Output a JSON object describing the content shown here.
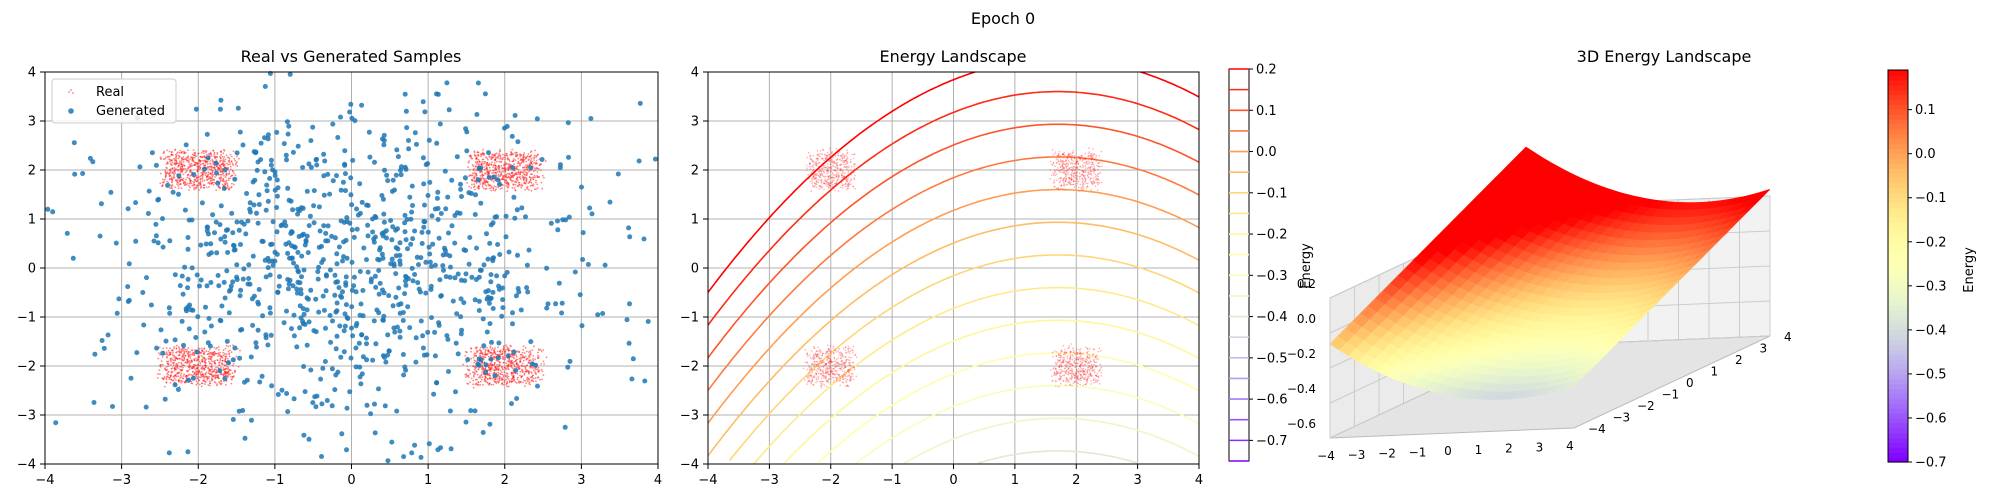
{
  "figure": {
    "title": "Epoch 0"
  },
  "colors": {
    "real": "#ff2020",
    "generated": "#1f77b4",
    "grid": "#b0b0b0",
    "colormap": [
      "#7f00ff",
      "#2b5ff6",
      "#28c5e9",
      "#80feb3",
      "#d4dd80",
      "#ff9a4f",
      "#ff0000"
    ]
  },
  "chart_data": [
    {
      "type": "scatter",
      "title": "Real vs Generated Samples",
      "xlim": [
        -4,
        4
      ],
      "ylim": [
        -4,
        4
      ],
      "xticks": [
        -4,
        -3,
        -2,
        -1,
        0,
        1,
        2,
        3,
        4
      ],
      "yticks": [
        -4,
        -3,
        -2,
        -1,
        0,
        1,
        2,
        3,
        4
      ],
      "grid": true,
      "legend": {
        "position": "top-left",
        "entries": [
          "Real",
          "Generated"
        ]
      },
      "series": [
        {
          "name": "Real",
          "cluster_centers": [
            [
              -2,
              2
            ],
            [
              2,
              2
            ],
            [
              -2,
              -2
            ],
            [
              2,
              -2
            ]
          ],
          "cluster_halfwidth": [
            0.55,
            0.45
          ],
          "points_per_cluster": 700
        },
        {
          "name": "Generated",
          "center": [
            0,
            0
          ],
          "spread": 1.6,
          "points": 1000
        }
      ]
    },
    {
      "type": "contour",
      "title": "Energy Landscape",
      "xlim": [
        -4,
        4
      ],
      "ylim": [
        -4,
        4
      ],
      "xticks": [
        -4,
        -3,
        -2,
        -1,
        0,
        1,
        2,
        3,
        4
      ],
      "yticks": [
        -4,
        -3,
        -2,
        -1,
        0,
        1,
        2,
        3,
        4
      ],
      "grid": true,
      "levels": [
        -0.75,
        -0.7,
        -0.65,
        -0.6,
        -0.55,
        -0.5,
        -0.45,
        -0.4,
        -0.35,
        -0.3,
        -0.25,
        -0.2,
        -0.15,
        -0.1,
        -0.05,
        0.0,
        0.05,
        0.1,
        0.15,
        0.2
      ],
      "overlay_clusters": [
        [
          -2,
          2
        ],
        [
          2,
          2
        ],
        [
          -2,
          -2
        ],
        [
          2,
          -2
        ]
      ],
      "colorbar": {
        "label": "Energy",
        "ticks": [
          "0.2",
          "0.1",
          "0.0",
          "−0.1",
          "−0.2",
          "−0.3",
          "−0.4",
          "−0.5",
          "−0.6",
          "−0.7"
        ],
        "range": [
          -0.75,
          0.2
        ]
      }
    },
    {
      "type": "surface3d",
      "title": "3D Energy Landscape",
      "xlim": [
        -4,
        4
      ],
      "ylim": [
        -4,
        4
      ],
      "zlim": [
        -0.6,
        0.2
      ],
      "xticks": [
        "−4",
        "−3",
        "−2",
        "−1",
        "0",
        "1",
        "2",
        "3",
        "4"
      ],
      "yticks": [
        "−4",
        "−3",
        "−2",
        "−1",
        "0",
        "1",
        "2",
        "3",
        "4"
      ],
      "zticks": [
        "0.2",
        "0.0",
        "−0.2",
        "−0.4",
        "−0.6"
      ],
      "colorbar": {
        "label": "Energy",
        "ticks": [
          "0.1",
          "0.0",
          "−0.1",
          "−0.2",
          "−0.3",
          "−0.4",
          "−0.5",
          "−0.6",
          "−0.7"
        ],
        "range": [
          -0.7,
          0.19
        ]
      }
    }
  ]
}
